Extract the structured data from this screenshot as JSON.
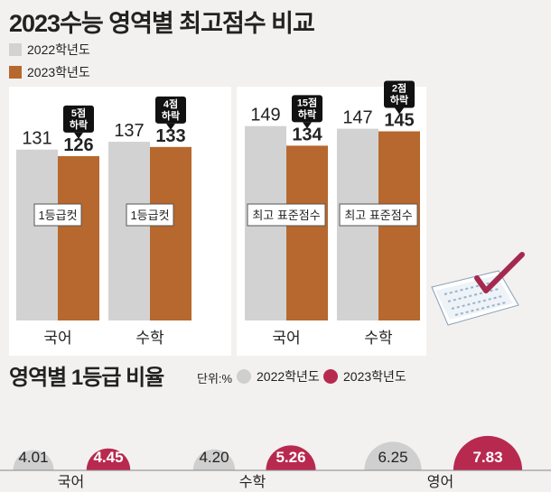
{
  "title": "2023수능 영역별 최고점수 비교",
  "legend": {
    "y2022": "2022학년도",
    "y2023": "2023학년도"
  },
  "colors": {
    "y2022": "#d2d2d2",
    "y2023": "#b7682e",
    "pct2022": "#cfcfcf",
    "pct2023": "#b8294f",
    "callout": "#111111"
  },
  "chart_data": [
    {
      "type": "bar",
      "categories": [
        "국어",
        "수학"
      ],
      "series": [
        {
          "name": "2022학년도",
          "values": [
            131,
            137
          ]
        },
        {
          "name": "2023학년도",
          "values": [
            126,
            133
          ]
        }
      ],
      "bar_labels": [
        "1등급컷",
        "1등급컷"
      ],
      "callouts": [
        "5점\n하락",
        "4점\n하락"
      ],
      "ylim": [
        0,
        160
      ]
    },
    {
      "type": "bar",
      "categories": [
        "국어",
        "수학"
      ],
      "series": [
        {
          "name": "2022학년도",
          "values": [
            149,
            147
          ]
        },
        {
          "name": "2023학년도",
          "values": [
            134,
            145
          ]
        }
      ],
      "bar_labels": [
        "최고 표준점수",
        "최고 표준점수"
      ],
      "callouts": [
        "15점\n하락",
        "2점\n하락"
      ],
      "ylim": [
        0,
        160
      ]
    },
    {
      "type": "bar",
      "title": "영역별 1등급 비율",
      "unit": "단위:%",
      "categories": [
        "국어",
        "수학",
        "영어"
      ],
      "series": [
        {
          "name": "2022학년도",
          "values": [
            4.01,
            4.2,
            6.25
          ]
        },
        {
          "name": "2023학년도",
          "values": [
            4.45,
            5.26,
            7.83
          ]
        }
      ]
    }
  ]
}
